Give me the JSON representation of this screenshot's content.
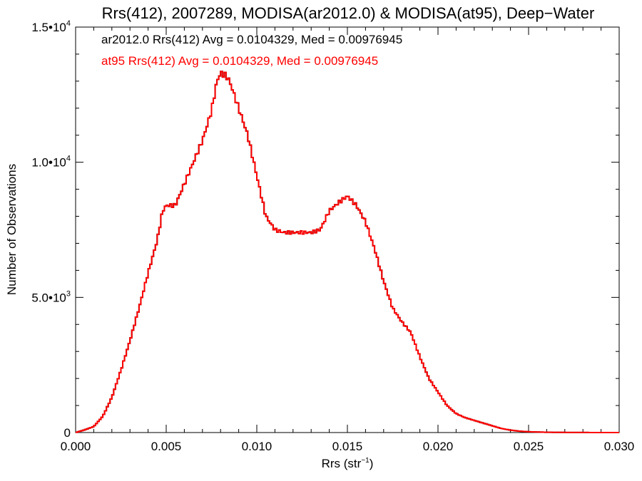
{
  "chart_data": {
    "type": "line",
    "title": "Rrs(412), 2007289, MODISA(ar2012.0) & MODISA(at95), Deep−Water",
    "xlabel": "Rrs (str",
    "xlabel_sup": "−1",
    "xlabel_close": ")",
    "ylabel": "Number of Observations",
    "xlim": [
      0.0,
      0.03
    ],
    "ylim": [
      0,
      15000
    ],
    "x_ticks": [
      {
        "value": 0.0,
        "label": "0.000"
      },
      {
        "value": 0.005,
        "label": "0.005"
      },
      {
        "value": 0.01,
        "label": "0.010"
      },
      {
        "value": 0.015,
        "label": "0.015"
      },
      {
        "value": 0.02,
        "label": "0.020"
      },
      {
        "value": 0.025,
        "label": "0.025"
      },
      {
        "value": 0.03,
        "label": "0.030"
      }
    ],
    "y_ticks": [
      {
        "value": 0,
        "mantissa": "0",
        "exponent": ""
      },
      {
        "value": 5000,
        "mantissa": "5.0•10",
        "exponent": "3"
      },
      {
        "value": 10000,
        "mantissa": "1.0•10",
        "exponent": "4"
      },
      {
        "value": 15000,
        "mantissa": "1.5•10",
        "exponent": "4"
      }
    ],
    "annotations": [
      {
        "text": "ar2012.0 Rrs(412) Avg = 0.0104329, Med = 0.00976945",
        "color": "#000000"
      },
      {
        "text": "at95 Rrs(412) Avg = 0.0104329, Med = 0.00976945",
        "color": "#ff0000"
      }
    ],
    "bin_width": 0.0001,
    "series": [
      {
        "name": "ar2012.0",
        "color": "#000000",
        "x": [
          0.0,
          0.0005,
          0.001,
          0.0015,
          0.002,
          0.0025,
          0.003,
          0.0035,
          0.004,
          0.0045,
          0.0048,
          0.005,
          0.0055,
          0.006,
          0.0065,
          0.007,
          0.0075,
          0.0078,
          0.008,
          0.0083,
          0.0085,
          0.009,
          0.0095,
          0.01,
          0.0105,
          0.011,
          0.0115,
          0.012,
          0.0125,
          0.013,
          0.0135,
          0.014,
          0.0145,
          0.015,
          0.0155,
          0.016,
          0.0165,
          0.017,
          0.0175,
          0.018,
          0.0185,
          0.019,
          0.0195,
          0.02,
          0.0205,
          0.021,
          0.0215,
          0.022,
          0.0225,
          0.023,
          0.0235,
          0.024,
          0.0245,
          0.025,
          0.0255,
          0.026,
          0.027,
          0.028,
          0.029,
          0.0299
        ],
        "values": [
          0,
          100,
          220,
          600,
          1300,
          2300,
          3400,
          4600,
          5900,
          7100,
          8200,
          8400,
          8400,
          9200,
          10000,
          10800,
          11900,
          13000,
          13300,
          13200,
          13000,
          12000,
          11000,
          9500,
          8000,
          7500,
          7400,
          7400,
          7400,
          7400,
          7500,
          8200,
          8500,
          8750,
          8400,
          7800,
          6800,
          5600,
          4600,
          4100,
          3700,
          2800,
          2000,
          1500,
          1000,
          700,
          550,
          450,
          350,
          250,
          150,
          90,
          50,
          30,
          20,
          10,
          5,
          2,
          1,
          0
        ]
      },
      {
        "name": "at95",
        "color": "#ff0000",
        "x": [
          0.0,
          0.0005,
          0.001,
          0.0015,
          0.002,
          0.0025,
          0.003,
          0.0035,
          0.004,
          0.0045,
          0.0048,
          0.005,
          0.0055,
          0.006,
          0.0065,
          0.007,
          0.0075,
          0.0078,
          0.008,
          0.0083,
          0.0085,
          0.009,
          0.0095,
          0.01,
          0.0105,
          0.011,
          0.0115,
          0.012,
          0.0125,
          0.013,
          0.0135,
          0.014,
          0.0145,
          0.015,
          0.0155,
          0.016,
          0.0165,
          0.017,
          0.0175,
          0.018,
          0.0185,
          0.019,
          0.0195,
          0.02,
          0.0205,
          0.021,
          0.0215,
          0.022,
          0.0225,
          0.023,
          0.0235,
          0.024,
          0.0245,
          0.025,
          0.0255,
          0.026,
          0.027,
          0.028,
          0.029,
          0.0299
        ],
        "values": [
          0,
          100,
          220,
          600,
          1300,
          2300,
          3400,
          4600,
          5900,
          7100,
          8200,
          8400,
          8400,
          9200,
          10000,
          10800,
          11900,
          13000,
          13300,
          13200,
          13000,
          12000,
          11000,
          9500,
          8000,
          7500,
          7400,
          7400,
          7400,
          7400,
          7500,
          8200,
          8500,
          8750,
          8400,
          7800,
          6800,
          5600,
          4600,
          4100,
          3700,
          2800,
          2000,
          1500,
          1000,
          700,
          550,
          450,
          350,
          250,
          150,
          90,
          50,
          30,
          20,
          10,
          5,
          2,
          1,
          0
        ]
      }
    ]
  }
}
